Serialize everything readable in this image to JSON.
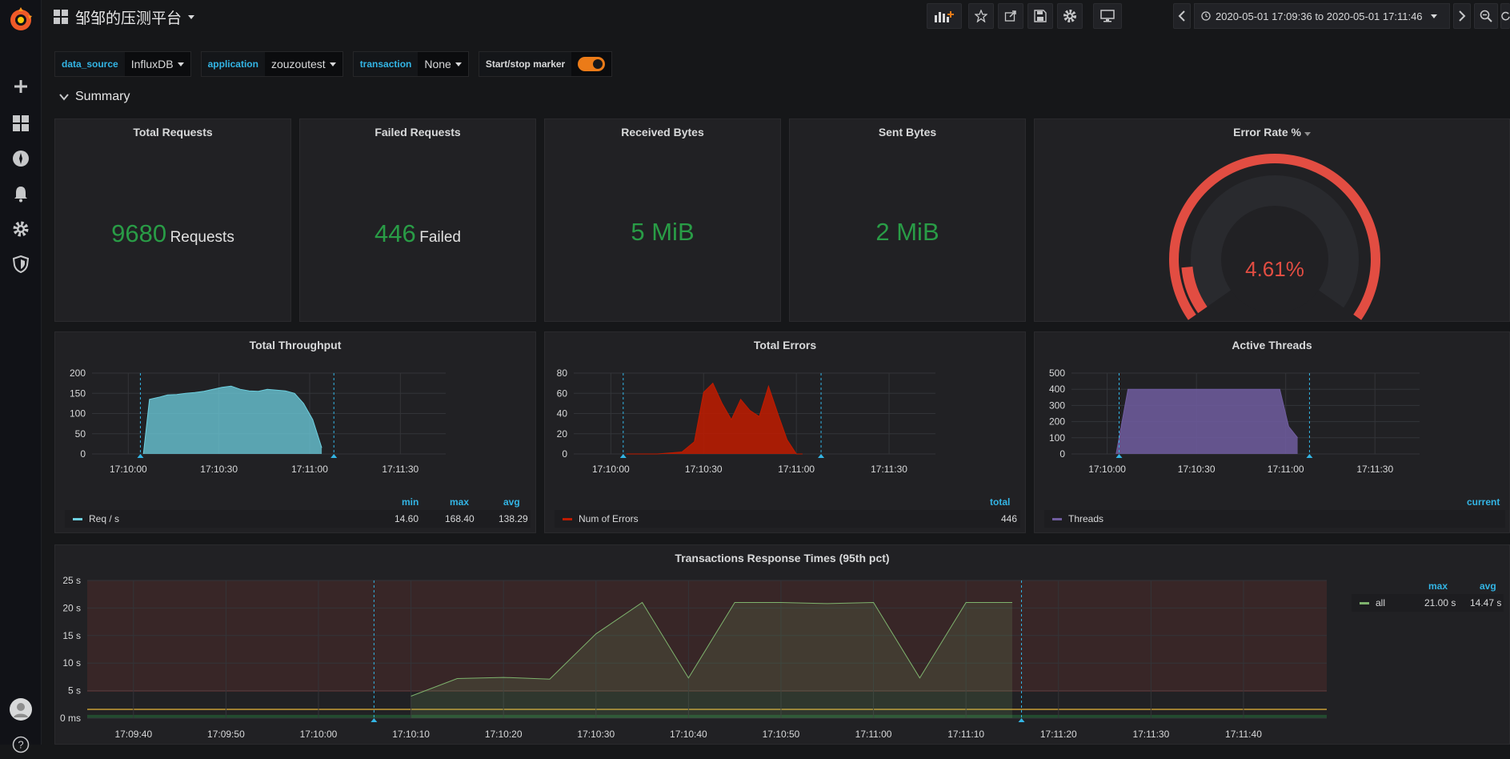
{
  "topbar": {
    "dashboard_title": "邹邹的压测平台",
    "time_range": "2020-05-01 17:09:36 to 2020-05-01 17:11:46"
  },
  "variables": [
    {
      "label": "data_source",
      "value": "InfluxDB"
    },
    {
      "label": "application",
      "value": "zouzoutest"
    },
    {
      "label": "transaction",
      "value": "None"
    }
  ],
  "marker": {
    "label": "Start/stop marker",
    "enabled": true
  },
  "row": {
    "title": "Summary"
  },
  "stats": {
    "total_requests": {
      "title": "Total Requests",
      "value": "9680",
      "unit": "Requests"
    },
    "failed_requests": {
      "title": "Failed Requests",
      "value": "446",
      "unit": "Failed"
    },
    "received_bytes": {
      "title": "Received Bytes",
      "value": "5 MiB"
    },
    "sent_bytes": {
      "title": "Sent Bytes",
      "value": "2 MiB"
    },
    "error_rate": {
      "title": "Error Rate %",
      "value": "4.61%",
      "percent": 4.61
    }
  },
  "throughput": {
    "title": "Total Throughput",
    "legend_headers": [
      "min",
      "max",
      "avg"
    ],
    "series_name": "Req / s",
    "legend_values": [
      "14.60",
      "168.40",
      "138.29"
    ],
    "color": "#6ed0e0"
  },
  "errors": {
    "title": "Total Errors",
    "legend_headers": [
      "total"
    ],
    "series_name": "Num of Errors",
    "legend_values": [
      "446"
    ],
    "color": "#bf1b00"
  },
  "threads": {
    "title": "Active Threads",
    "legend_headers": [
      "current"
    ],
    "series_name": "Threads",
    "legend_values": [
      ""
    ],
    "color": "#705da0"
  },
  "response": {
    "title": "Transactions Response Times (95th pct)",
    "legend_headers": [
      "max",
      "avg"
    ],
    "series_name": "all",
    "legend_values": [
      "21.00 s",
      "14.47 s"
    ],
    "color": "#7eb26d"
  },
  "chart_data": [
    {
      "type": "area",
      "title": "Total Throughput",
      "x": [
        "17:10:05",
        "17:10:07",
        "17:10:10",
        "17:10:13",
        "17:10:16",
        "17:10:19",
        "17:10:22",
        "17:10:25",
        "17:10:28",
        "17:10:31",
        "17:10:34",
        "17:10:37",
        "17:10:40",
        "17:10:43",
        "17:10:46",
        "17:10:49",
        "17:10:52",
        "17:10:55",
        "17:10:58",
        "17:11:01",
        "17:11:04"
      ],
      "series": [
        {
          "name": "Req / s",
          "values": [
            0,
            135,
            140,
            146,
            147,
            150,
            152,
            155,
            160,
            165,
            168,
            160,
            156,
            155,
            160,
            158,
            156,
            150,
            125,
            85,
            15
          ]
        }
      ],
      "ylim": [
        0,
        200
      ],
      "yticks": [
        "0",
        "50",
        "100",
        "150",
        "200"
      ],
      "xticks": [
        "17:10:00",
        "17:10:30",
        "17:11:00",
        "17:11:30"
      ]
    },
    {
      "type": "area",
      "title": "Total Errors",
      "x": [
        "17:10:05",
        "17:10:15",
        "17:10:23",
        "17:10:27",
        "17:10:30",
        "17:10:33",
        "17:10:36",
        "17:10:39",
        "17:10:42",
        "17:10:45",
        "17:10:48",
        "17:10:51",
        "17:10:54",
        "17:10:57",
        "17:11:00",
        "17:11:02"
      ],
      "series": [
        {
          "name": "Num of Errors",
          "values": [
            0,
            0,
            2,
            12,
            61,
            70,
            50,
            34,
            54,
            43,
            37,
            67,
            40,
            14,
            0,
            0
          ]
        }
      ],
      "ylim": [
        0,
        80
      ],
      "yticks": [
        "0",
        "20",
        "40",
        "60",
        "80"
      ],
      "xticks": [
        "17:10:00",
        "17:10:30",
        "17:11:00",
        "17:11:30"
      ]
    },
    {
      "type": "area",
      "title": "Active Threads",
      "x": [
        "17:10:03",
        "17:10:07",
        "17:10:58",
        "17:11:01",
        "17:11:04"
      ],
      "series": [
        {
          "name": "Threads",
          "values": [
            0,
            400,
            400,
            170,
            100
          ]
        }
      ],
      "ylim": [
        0,
        500
      ],
      "yticks": [
        "0",
        "100",
        "200",
        "300",
        "400",
        "500"
      ],
      "xticks": [
        "17:10:00",
        "17:10:30",
        "17:11:00",
        "17:11:30"
      ]
    },
    {
      "type": "line",
      "title": "Transactions Response Times (95th pct)",
      "x": [
        "17:10:10",
        "17:10:15",
        "17:10:20",
        "17:10:25",
        "17:10:30",
        "17:10:35",
        "17:10:40",
        "17:10:45",
        "17:10:50",
        "17:10:55",
        "17:11:00",
        "17:11:05",
        "17:11:10",
        "17:11:15"
      ],
      "series": [
        {
          "name": "all",
          "values": [
            4,
            7.2,
            7.4,
            7.1,
            15.3,
            21,
            7.3,
            21,
            21,
            20.8,
            21,
            7.3,
            21,
            21
          ]
        }
      ],
      "ylim": [
        0,
        25
      ],
      "yticks": [
        "0 ms",
        "5 s",
        "10 s",
        "15 s",
        "20 s",
        "25 s"
      ],
      "xticks": [
        "17:09:40",
        "17:09:50",
        "17:10:00",
        "17:10:10",
        "17:10:20",
        "17:10:30",
        "17:10:40",
        "17:10:50",
        "17:11:00",
        "17:11:10",
        "17:11:20",
        "17:11:30",
        "17:11:40"
      ]
    }
  ],
  "colors": {
    "accent": "#33b5e5",
    "ok": "#299c46",
    "danger": "#e24d42",
    "toggle": "#eb7b18"
  }
}
